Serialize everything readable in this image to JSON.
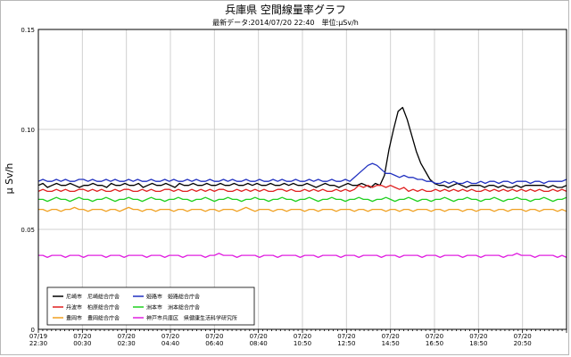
{
  "chart_data": {
    "type": "line",
    "title": "兵庫県 空間線量率グラフ",
    "subtitle": "最新データ:2014/07/20 22:40　単位:μSv/h",
    "ylabel": "μ Sv/h",
    "ylim": [
      0,
      0.15
    ],
    "y_ticks": [
      "0",
      "0.05",
      "0.10",
      "0.15"
    ],
    "grid": true,
    "legend_position": "bottom-left",
    "x_ticks": [
      [
        "07/19",
        "22:30"
      ],
      [
        "07/20",
        "00:30"
      ],
      [
        "07/20",
        "02:30"
      ],
      [
        "07/20",
        "04:40"
      ],
      [
        "07/20",
        "06:40"
      ],
      [
        "07/20",
        "08:40"
      ],
      [
        "07/20",
        "10:50"
      ],
      [
        "07/20",
        "12:50"
      ],
      [
        "07/20",
        "14:50"
      ],
      [
        "07/20",
        "16:50"
      ],
      [
        "07/20",
        "18:50"
      ],
      [
        "07/20",
        "20:50"
      ]
    ],
    "series": [
      {
        "name": "尼崎市　尼崎総合庁舎",
        "color": "#000000",
        "values": [
          0.072,
          0.073,
          0.071,
          0.072,
          0.073,
          0.072,
          0.072,
          0.073,
          0.072,
          0.071,
          0.072,
          0.072,
          0.073,
          0.072,
          0.072,
          0.071,
          0.073,
          0.072,
          0.072,
          0.073,
          0.072,
          0.072,
          0.073,
          0.071,
          0.072,
          0.073,
          0.072,
          0.072,
          0.073,
          0.072,
          0.071,
          0.073,
          0.072,
          0.072,
          0.073,
          0.072,
          0.072,
          0.073,
          0.072,
          0.072,
          0.073,
          0.072,
          0.072,
          0.073,
          0.072,
          0.072,
          0.073,
          0.072,
          0.073,
          0.072,
          0.072,
          0.073,
          0.072,
          0.072,
          0.073,
          0.072,
          0.073,
          0.072,
          0.072,
          0.073,
          0.072,
          0.071,
          0.072,
          0.073,
          0.072,
          0.072,
          0.071,
          0.072,
          0.073,
          0.072,
          0.072,
          0.073,
          0.072,
          0.071,
          0.073,
          0.072,
          0.077,
          0.09,
          0.1,
          0.109,
          0.111,
          0.105,
          0.097,
          0.089,
          0.083,
          0.079,
          0.075,
          0.073,
          0.072,
          0.072,
          0.071,
          0.072,
          0.073,
          0.072,
          0.071,
          0.072,
          0.072,
          0.072,
          0.071,
          0.072,
          0.072,
          0.071,
          0.072,
          0.071,
          0.071,
          0.072,
          0.071,
          0.072,
          0.072,
          0.072,
          0.072,
          0.072,
          0.071,
          0.072,
          0.071,
          0.071,
          0.072
        ]
      },
      {
        "name": "丹波市　柏原総合庁舎",
        "color": "#e02020",
        "values": [
          0.069,
          0.07,
          0.069,
          0.069,
          0.07,
          0.069,
          0.07,
          0.069,
          0.069,
          0.07,
          0.07,
          0.069,
          0.07,
          0.069,
          0.07,
          0.069,
          0.069,
          0.07,
          0.069,
          0.07,
          0.07,
          0.069,
          0.069,
          0.07,
          0.069,
          0.07,
          0.069,
          0.069,
          0.07,
          0.07,
          0.069,
          0.07,
          0.069,
          0.069,
          0.07,
          0.069,
          0.07,
          0.069,
          0.07,
          0.069,
          0.07,
          0.07,
          0.069,
          0.069,
          0.07,
          0.069,
          0.07,
          0.069,
          0.07,
          0.069,
          0.07,
          0.069,
          0.069,
          0.07,
          0.07,
          0.069,
          0.07,
          0.069,
          0.069,
          0.07,
          0.069,
          0.07,
          0.069,
          0.07,
          0.069,
          0.069,
          0.07,
          0.069,
          0.07,
          0.069,
          0.07,
          0.072,
          0.071,
          0.072,
          0.071,
          0.072,
          0.072,
          0.071,
          0.072,
          0.071,
          0.07,
          0.071,
          0.069,
          0.07,
          0.069,
          0.07,
          0.069,
          0.069,
          0.07,
          0.069,
          0.07,
          0.069,
          0.07,
          0.069,
          0.07,
          0.069,
          0.07,
          0.069,
          0.069,
          0.07,
          0.069,
          0.07,
          0.069,
          0.07,
          0.069,
          0.07,
          0.069,
          0.07,
          0.069,
          0.07,
          0.069,
          0.07,
          0.069,
          0.069,
          0.07,
          0.069,
          0.07,
          0.069
        ]
      },
      {
        "name": "豊岡市　豊岡総合庁舎",
        "color": "#f0a020",
        "values": [
          0.06,
          0.06,
          0.059,
          0.06,
          0.06,
          0.059,
          0.06,
          0.06,
          0.061,
          0.06,
          0.06,
          0.059,
          0.06,
          0.06,
          0.06,
          0.059,
          0.06,
          0.06,
          0.059,
          0.06,
          0.061,
          0.06,
          0.06,
          0.059,
          0.06,
          0.06,
          0.059,
          0.06,
          0.06,
          0.06,
          0.059,
          0.06,
          0.06,
          0.059,
          0.06,
          0.06,
          0.06,
          0.059,
          0.06,
          0.06,
          0.059,
          0.06,
          0.06,
          0.06,
          0.059,
          0.06,
          0.061,
          0.06,
          0.059,
          0.06,
          0.06,
          0.06,
          0.059,
          0.06,
          0.06,
          0.059,
          0.06,
          0.06,
          0.06,
          0.059,
          0.06,
          0.06,
          0.059,
          0.06,
          0.06,
          0.06,
          0.059,
          0.06,
          0.06,
          0.06,
          0.059,
          0.06,
          0.06,
          0.059,
          0.06,
          0.06,
          0.06,
          0.059,
          0.06,
          0.06,
          0.059,
          0.06,
          0.06,
          0.059,
          0.06,
          0.06,
          0.06,
          0.059,
          0.06,
          0.06,
          0.059,
          0.06,
          0.06,
          0.06,
          0.059,
          0.06,
          0.06,
          0.059,
          0.06,
          0.06,
          0.06,
          0.059,
          0.06,
          0.06,
          0.059,
          0.06,
          0.06,
          0.06,
          0.059,
          0.06,
          0.06,
          0.059,
          0.06,
          0.06,
          0.06,
          0.059,
          0.06,
          0.059
        ]
      },
      {
        "name": "姫路市　姫路総合庁舎",
        "color": "#2030c0",
        "values": [
          0.074,
          0.075,
          0.074,
          0.074,
          0.075,
          0.074,
          0.075,
          0.074,
          0.074,
          0.075,
          0.075,
          0.074,
          0.075,
          0.074,
          0.074,
          0.075,
          0.074,
          0.075,
          0.074,
          0.074,
          0.075,
          0.074,
          0.075,
          0.074,
          0.074,
          0.075,
          0.074,
          0.074,
          0.075,
          0.074,
          0.075,
          0.074,
          0.074,
          0.075,
          0.074,
          0.075,
          0.074,
          0.074,
          0.075,
          0.074,
          0.074,
          0.075,
          0.074,
          0.075,
          0.074,
          0.074,
          0.075,
          0.074,
          0.074,
          0.075,
          0.074,
          0.074,
          0.075,
          0.074,
          0.075,
          0.074,
          0.074,
          0.075,
          0.074,
          0.074,
          0.075,
          0.074,
          0.075,
          0.074,
          0.074,
          0.075,
          0.074,
          0.074,
          0.075,
          0.074,
          0.076,
          0.078,
          0.08,
          0.082,
          0.083,
          0.082,
          0.08,
          0.078,
          0.078,
          0.077,
          0.076,
          0.077,
          0.076,
          0.076,
          0.075,
          0.075,
          0.074,
          0.074,
          0.073,
          0.073,
          0.074,
          0.073,
          0.074,
          0.073,
          0.073,
          0.074,
          0.073,
          0.073,
          0.074,
          0.073,
          0.074,
          0.074,
          0.073,
          0.074,
          0.074,
          0.073,
          0.074,
          0.074,
          0.074,
          0.073,
          0.074,
          0.074,
          0.073,
          0.074,
          0.074,
          0.074,
          0.074,
          0.075
        ]
      },
      {
        "name": "洲本市　洲本総合庁舎",
        "color": "#20d020",
        "values": [
          0.065,
          0.065,
          0.064,
          0.065,
          0.066,
          0.065,
          0.065,
          0.064,
          0.065,
          0.066,
          0.065,
          0.065,
          0.064,
          0.065,
          0.065,
          0.066,
          0.065,
          0.064,
          0.065,
          0.065,
          0.066,
          0.065,
          0.065,
          0.064,
          0.065,
          0.066,
          0.065,
          0.065,
          0.064,
          0.065,
          0.065,
          0.066,
          0.065,
          0.065,
          0.064,
          0.065,
          0.065,
          0.066,
          0.065,
          0.064,
          0.065,
          0.065,
          0.066,
          0.065,
          0.065,
          0.064,
          0.065,
          0.065,
          0.066,
          0.065,
          0.065,
          0.064,
          0.065,
          0.065,
          0.066,
          0.065,
          0.065,
          0.064,
          0.065,
          0.065,
          0.066,
          0.065,
          0.064,
          0.065,
          0.065,
          0.066,
          0.065,
          0.065,
          0.064,
          0.065,
          0.065,
          0.066,
          0.065,
          0.065,
          0.064,
          0.065,
          0.065,
          0.066,
          0.065,
          0.064,
          0.065,
          0.065,
          0.066,
          0.065,
          0.064,
          0.065,
          0.065,
          0.064,
          0.065,
          0.065,
          0.066,
          0.065,
          0.064,
          0.065,
          0.065,
          0.066,
          0.065,
          0.065,
          0.064,
          0.065,
          0.065,
          0.066,
          0.065,
          0.064,
          0.065,
          0.065,
          0.066,
          0.065,
          0.065,
          0.064,
          0.065,
          0.065,
          0.066,
          0.065,
          0.064,
          0.065,
          0.065,
          0.066
        ]
      },
      {
        "name": "神戸市兵庫区　県健康生活科学研究所",
        "color": "#e020e0",
        "values": [
          0.037,
          0.037,
          0.036,
          0.037,
          0.037,
          0.037,
          0.036,
          0.037,
          0.037,
          0.037,
          0.036,
          0.037,
          0.037,
          0.037,
          0.037,
          0.036,
          0.037,
          0.037,
          0.037,
          0.036,
          0.037,
          0.037,
          0.037,
          0.037,
          0.036,
          0.037,
          0.037,
          0.037,
          0.036,
          0.037,
          0.037,
          0.037,
          0.036,
          0.037,
          0.037,
          0.037,
          0.037,
          0.036,
          0.037,
          0.037,
          0.038,
          0.037,
          0.037,
          0.037,
          0.036,
          0.037,
          0.037,
          0.037,
          0.037,
          0.036,
          0.037,
          0.037,
          0.037,
          0.036,
          0.037,
          0.037,
          0.037,
          0.037,
          0.036,
          0.037,
          0.037,
          0.037,
          0.036,
          0.037,
          0.037,
          0.037,
          0.037,
          0.036,
          0.037,
          0.037,
          0.037,
          0.036,
          0.037,
          0.037,
          0.037,
          0.037,
          0.036,
          0.037,
          0.037,
          0.037,
          0.036,
          0.037,
          0.037,
          0.037,
          0.037,
          0.036,
          0.037,
          0.037,
          0.037,
          0.036,
          0.037,
          0.037,
          0.037,
          0.037,
          0.036,
          0.037,
          0.037,
          0.037,
          0.036,
          0.037,
          0.037,
          0.037,
          0.037,
          0.036,
          0.037,
          0.037,
          0.038,
          0.037,
          0.037,
          0.037,
          0.036,
          0.037,
          0.037,
          0.037,
          0.037,
          0.036,
          0.037,
          0.036
        ]
      }
    ]
  }
}
